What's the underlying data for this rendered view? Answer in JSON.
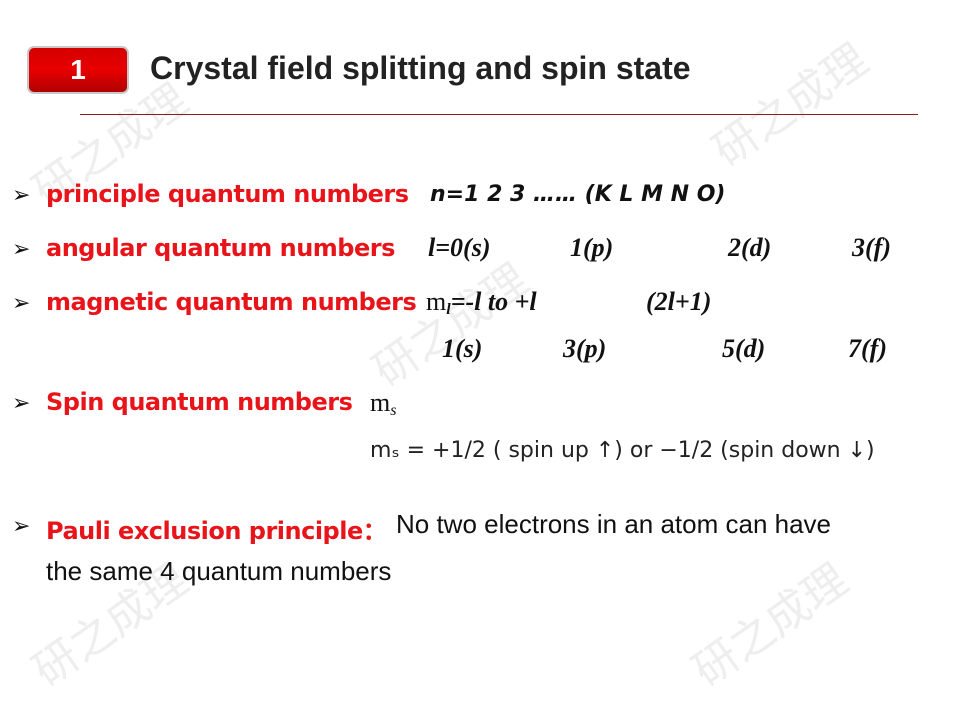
{
  "header": {
    "number": "1",
    "title": "Crystal field splitting and spin state"
  },
  "watermark": "研之成理",
  "items": [
    {
      "label": "principle quantum numbers",
      "value": "n=1  2  3 …… (K L M N O)"
    },
    {
      "label": "angular quantum numbers",
      "values": [
        "l=0(s)",
        "1(p)",
        "2(d)",
        "3(f)"
      ]
    },
    {
      "label": "magnetic quantum numbers",
      "symbol": "m",
      "sub": "l",
      "value": "=-l to +l",
      "count": "(2l+1)",
      "values": [
        "1(s)",
        "3(p)",
        "5(d)",
        "7(f)"
      ]
    },
    {
      "label": "Spin quantum numbers",
      "symbol": "m",
      "sub": "s",
      "detail": "mₛ = +1/2 ( spin up ↑) or −1/2 (spin down ↓)"
    },
    {
      "label": "Pauli exclusion principle：",
      "text1": "No two electrons in an atom can have",
      "text2": "the same 4 quantum numbers"
    }
  ],
  "bullet": "➢"
}
